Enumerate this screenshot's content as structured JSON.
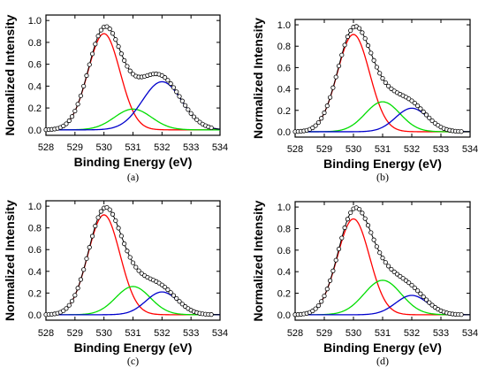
{
  "figure": {
    "xlabel": "Binding Energy (eV)",
    "ylabel": "Normalized Intensity"
  },
  "colors": {
    "component_1": "#ff0000",
    "component_2": "#00dd00",
    "component_3": "#0000cc",
    "envelope": "#000000",
    "data_markers": "#000000"
  },
  "chart_data": [
    {
      "type": "line",
      "caption": "(a)",
      "xlabel": "Binding Energy (eV)",
      "ylabel": "Normalized Intensity",
      "xlim": [
        528,
        534
      ],
      "ylim": [
        -0.05,
        1.05
      ],
      "x_ticks": [
        "528",
        "529",
        "530",
        "531",
        "532",
        "533",
        "534"
      ],
      "y_ticks": [
        "0.0",
        "0.2",
        "0.4",
        "0.6",
        "0.8",
        "1.0"
      ],
      "grid": false,
      "series": [
        {
          "kind": "peak",
          "color": "#ff0000",
          "center": 530.0,
          "height": 0.88,
          "fwhm": 1.3
        },
        {
          "kind": "peak",
          "color": "#00dd00",
          "center": 531.0,
          "height": 0.19,
          "fwhm": 1.5
        },
        {
          "kind": "peak",
          "color": "#0000cc",
          "center": 532.0,
          "height": 0.44,
          "fwhm": 1.6
        },
        {
          "kind": "envelope",
          "color": "#000000",
          "markers": "open-circle"
        }
      ]
    },
    {
      "type": "line",
      "caption": "(b)",
      "xlabel": "Binding Energy (eV)",
      "ylabel": "Normalized Intensity",
      "xlim": [
        528,
        534
      ],
      "ylim": [
        -0.05,
        1.05
      ],
      "x_ticks": [
        "528",
        "529",
        "530",
        "531",
        "532",
        "533",
        "534"
      ],
      "y_ticks": [
        "0.0",
        "0.2",
        "0.4",
        "0.6",
        "0.8",
        "1.0"
      ],
      "grid": false,
      "series": [
        {
          "kind": "peak",
          "color": "#ff0000",
          "center": 530.0,
          "height": 0.91,
          "fwhm": 1.3
        },
        {
          "kind": "peak",
          "color": "#00dd00",
          "center": 531.0,
          "height": 0.28,
          "fwhm": 1.4
        },
        {
          "kind": "peak",
          "color": "#0000cc",
          "center": 532.0,
          "height": 0.22,
          "fwhm": 1.3
        },
        {
          "kind": "envelope",
          "color": "#000000",
          "markers": "open-circle"
        }
      ]
    },
    {
      "type": "line",
      "caption": "(c)",
      "xlabel": "Binding Energy (eV)",
      "ylabel": "Normalized Intensity",
      "xlim": [
        528,
        534
      ],
      "ylim": [
        -0.05,
        1.05
      ],
      "x_ticks": [
        "528",
        "529",
        "530",
        "531",
        "532",
        "533",
        "534"
      ],
      "y_ticks": [
        "0.0",
        "0.2",
        "0.4",
        "0.6",
        "0.8",
        "1.0"
      ],
      "grid": false,
      "series": [
        {
          "kind": "peak",
          "color": "#ff0000",
          "center": 530.0,
          "height": 0.92,
          "fwhm": 1.3
        },
        {
          "kind": "peak",
          "color": "#00dd00",
          "center": 531.0,
          "height": 0.26,
          "fwhm": 1.4
        },
        {
          "kind": "peak",
          "color": "#0000cc",
          "center": 532.0,
          "height": 0.21,
          "fwhm": 1.3
        },
        {
          "kind": "envelope",
          "color": "#000000",
          "markers": "open-circle"
        }
      ]
    },
    {
      "type": "line",
      "caption": "(d)",
      "xlabel": "Binding Energy (eV)",
      "ylabel": "Normalized Intensity",
      "xlim": [
        528,
        534
      ],
      "ylim": [
        -0.05,
        1.05
      ],
      "x_ticks": [
        "528",
        "529",
        "530",
        "531",
        "532",
        "533",
        "534"
      ],
      "y_ticks": [
        "0.0",
        "0.2",
        "0.4",
        "0.6",
        "0.8",
        "1.0"
      ],
      "grid": false,
      "series": [
        {
          "kind": "peak",
          "color": "#ff0000",
          "center": 530.0,
          "height": 0.89,
          "fwhm": 1.3
        },
        {
          "kind": "peak",
          "color": "#00dd00",
          "center": 531.0,
          "height": 0.32,
          "fwhm": 1.5
        },
        {
          "kind": "peak",
          "color": "#0000cc",
          "center": 532.0,
          "height": 0.18,
          "fwhm": 1.3
        },
        {
          "kind": "envelope",
          "color": "#000000",
          "markers": "open-circle"
        }
      ]
    }
  ]
}
